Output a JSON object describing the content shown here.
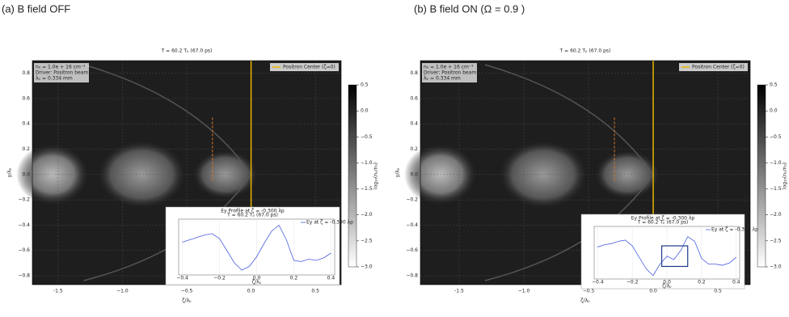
{
  "chart_data": [
    {
      "type": "heatmap",
      "panel_label": "(a) B field OFF",
      "title": "T = 60.2 Tₚ (67.0 ps)",
      "xlabel": "ζ/λₚ",
      "ylabel": "y/λₚ",
      "xlim": [
        -1.7,
        0.7
      ],
      "ylim": [
        -0.87,
        0.9
      ],
      "xticks": [
        -1.5,
        {
          "value": -1,
          "label": "−1.0"
        },
        {
          "value": -0.5,
          "label": "−0.5"
        },
        {
          "value": 0,
          "label": "0.0"
        },
        0.5
      ],
      "yticks": [
        0.8,
        0.6,
        0.4,
        0.2,
        {
          "value": 0,
          "label": "0.0"
        },
        {
          "value": -0.2,
          "label": "−0.2"
        },
        {
          "value": -0.4,
          "label": "−0.4"
        },
        {
          "value": -0.6,
          "label": "−0.6"
        },
        {
          "value": -0.8,
          "label": "−0.8"
        }
      ],
      "info": [
        "n₀ = 1.0e + 16 cm⁻³",
        "Driver: Positron beam",
        "λₚ = 0.334 mm"
      ],
      "lines": [
        {
          "name": "Positron Center (ζ=0)",
          "x": 0,
          "color": "#e8b400",
          "style": "solid"
        },
        {
          "x": -0.3,
          "color": "#e07820",
          "style": "dashed"
        }
      ],
      "colorbar": {
        "label": "log₁₀(nₑ/n₀)",
        "lim": [
          -3,
          0.5
        ],
        "ticks": [
          0.5,
          {
            "value": 0,
            "label": "0.0"
          },
          {
            "value": -0.5,
            "label": "−0.5"
          },
          {
            "value": -1,
            "label": "−1.0"
          },
          {
            "value": -1.5,
            "label": "−1.5"
          },
          {
            "value": -2,
            "label": "−2.0"
          },
          {
            "value": -2.5,
            "label": "−2.5"
          },
          {
            "value": -3,
            "label": "−3.0"
          }
        ]
      },
      "inset": {
        "title": "Ey Profile at ζ = -0.300 λp",
        "subtitle": "T = 60.2 Tₚ (67.0 ps)",
        "legend": "Ey at ζ = -0.300 λp",
        "xlabel": "ζ/λₚ",
        "color": "#4a5de0",
        "xlim": [
          -0.42,
          0.42
        ],
        "ylim": [
          -2.3,
          2.3
        ],
        "xticks": [
          {
            "value": -0.4,
            "label": "−0.4"
          },
          {
            "value": -0.2,
            "label": "−0.2"
          },
          {
            "value": 0,
            "label": "0.0"
          },
          0.2,
          0.4
        ],
        "x": [
          -0.4,
          -0.36,
          -0.32,
          -0.28,
          -0.24,
          -0.2,
          -0.16,
          -0.12,
          -0.08,
          -0.04,
          0,
          0.04,
          0.08,
          0.12,
          0.16,
          0.2,
          0.24,
          0.28,
          0.32,
          0.36,
          0.4
        ],
        "values": [
          0.4,
          0.6,
          0.8,
          1.0,
          1.1,
          0.7,
          -0.3,
          -1.3,
          -1.9,
          -1.6,
          -0.8,
          0.3,
          1.3,
          1.8,
          0.6,
          -1.1,
          -1.2,
          -1.0,
          -1.1,
          -0.9,
          -0.5
        ]
      }
    },
    {
      "type": "heatmap",
      "panel_label": "(b) B field ON (Ω = 0.9 )",
      "title": "T = 60.2 Tₚ (67.0 ps)",
      "xlabel": "ζ/λₚ",
      "ylabel": "y/λₚ",
      "xlim": [
        -1.8,
        0.75
      ],
      "ylim": [
        -0.87,
        0.9
      ],
      "xticks": [
        -1.5,
        {
          "value": -1,
          "label": "−1.0"
        },
        {
          "value": -0.5,
          "label": "−0.5"
        },
        {
          "value": 0,
          "label": "0.0"
        },
        0.5
      ],
      "yticks": [
        0.8,
        0.6,
        0.4,
        0.2,
        {
          "value": 0,
          "label": "0.0"
        },
        {
          "value": -0.2,
          "label": "−0.2"
        },
        {
          "value": -0.4,
          "label": "−0.4"
        },
        {
          "value": -0.6,
          "label": "−0.6"
        },
        {
          "value": -0.8,
          "label": "−0.8"
        }
      ],
      "info": [
        "n₀ = 1.0e + 16 cm⁻³",
        "Driver: Positron beam",
        "λₚ = 0.334 mm"
      ],
      "lines": [
        {
          "name": "Positron Center (ζ=0)",
          "x": 0,
          "color": "#e8b400",
          "style": "solid"
        },
        {
          "x": -0.3,
          "color": "#e07820",
          "style": "dashed"
        }
      ],
      "colorbar": {
        "label": "log₁₀(nₑ/n₀)",
        "lim": [
          -3,
          0.5
        ],
        "ticks": [
          0.5,
          {
            "value": 0,
            "label": "0.0"
          },
          {
            "value": -0.5,
            "label": "−0.5"
          },
          {
            "value": -1,
            "label": "−1.0"
          },
          {
            "value": -1.5,
            "label": "−1.5"
          },
          {
            "value": -2,
            "label": "−2.0"
          },
          {
            "value": -2.5,
            "label": "−2.5"
          },
          {
            "value": -3,
            "label": "−3.0"
          }
        ]
      },
      "inset": {
        "title": "Ey Profile at ζ = -0.300 λp",
        "subtitle": "T = 60.2 Tₚ (67.0 ps)",
        "legend": "Ey at ζ = -0.300 λp",
        "xlabel": "ζ/λₚ",
        "color": "#4a5de0",
        "xlim": [
          -0.42,
          0.42
        ],
        "ylim": [
          -2.3,
          2.3
        ],
        "xticks": [
          {
            "value": -0.4,
            "label": "−0.4"
          },
          {
            "value": -0.2,
            "label": "−0.2"
          },
          {
            "value": 0,
            "label": "0.0"
          },
          0.2,
          0.4
        ],
        "x": [
          -0.4,
          -0.36,
          -0.32,
          -0.28,
          -0.24,
          -0.2,
          -0.16,
          -0.12,
          -0.08,
          -0.04,
          0,
          0.04,
          0.08,
          0.12,
          0.16,
          0.2,
          0.24,
          0.28,
          0.32,
          0.36,
          0.4
        ],
        "values": [
          0.5,
          0.7,
          0.8,
          1.0,
          1.1,
          0.6,
          -0.4,
          -1.4,
          -2.0,
          -1.0,
          -0.3,
          -0.6,
          0.2,
          1.4,
          1.0,
          -0.5,
          -1.0,
          -1.0,
          -1.1,
          -0.9,
          -0.4
        ]
      }
    }
  ]
}
